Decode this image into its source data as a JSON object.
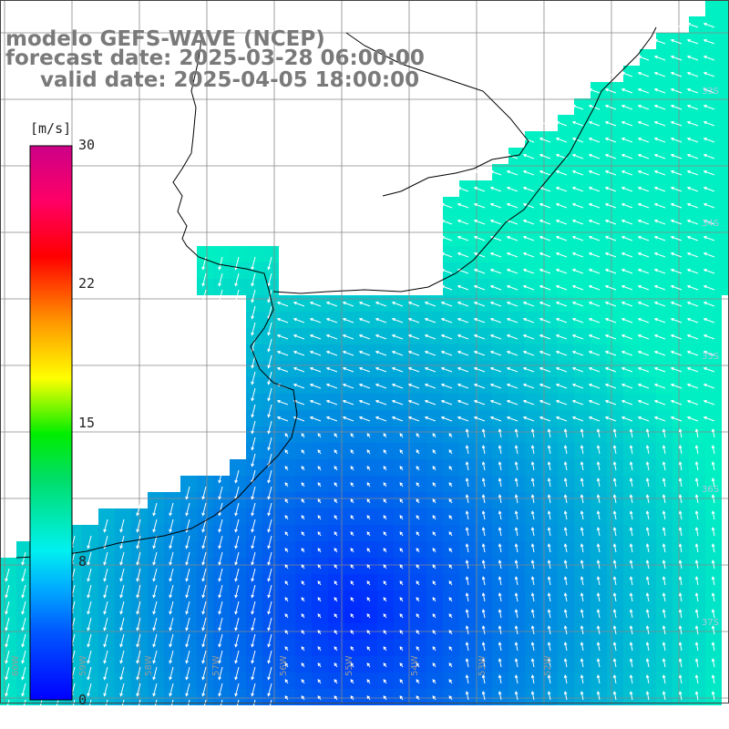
{
  "header": {
    "model": "modelo GEFS-WAVE (NCEP)",
    "forecast": "forecast date: 2025-03-28 06:00:00",
    "valid": "valid date: 2025-04-05 18:00:00"
  },
  "colorbar": {
    "unit": "[m/s]",
    "ticks": [
      "30",
      "22",
      "15",
      "8",
      "0"
    ],
    "tick_values": [
      30,
      22,
      15,
      8,
      0
    ],
    "range": [
      0,
      30
    ],
    "colors": [
      "#0000ff",
      "#0055ff",
      "#00aaff",
      "#00e8e8",
      "#00ff00",
      "#ffff00",
      "#ff9900",
      "#ff0000",
      "#ff0066",
      "#cc0088"
    ]
  },
  "map": {
    "lon_labels": [
      "60W",
      "59W",
      "58W",
      "57W",
      "56W",
      "55W",
      "54W",
      "53W",
      "52W"
    ],
    "lat_labels": [
      "33S",
      "34S",
      "35S",
      "36S",
      "37S"
    ],
    "land_color": "#ffffff",
    "grid_color": "#888888",
    "arrow_color": "#ffffff",
    "wind_field_note_visible": false
  }
}
